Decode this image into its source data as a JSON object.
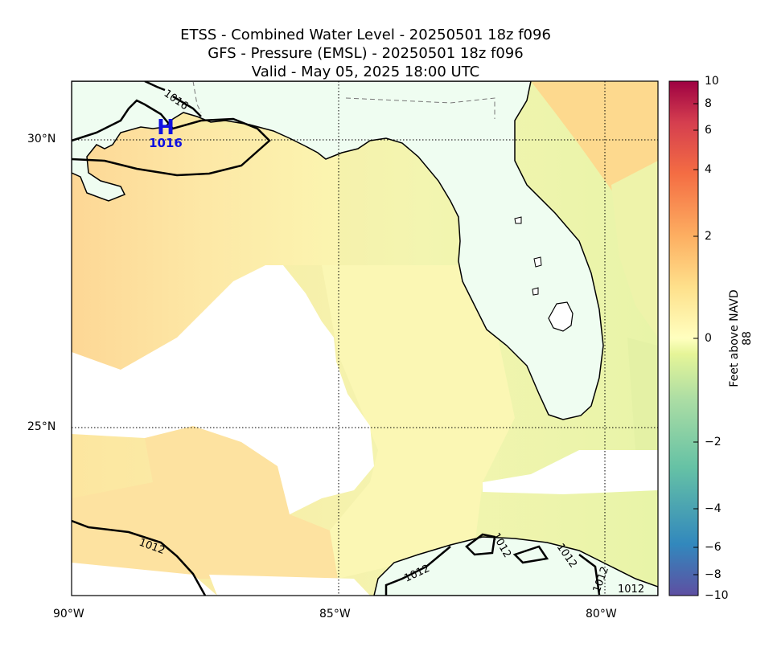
{
  "title": {
    "line1": "ETSS - Combined Water Level - 20250501 18z f096",
    "line2": "GFS - Pressure (EMSL) - 20250501 18z f096",
    "line3": "Valid - May 05, 2025 18:00 UTC"
  },
  "map": {
    "lat_labels": [
      "30°N",
      "25°N"
    ],
    "lon_labels": [
      "90°W",
      "85°W",
      "80°W"
    ],
    "high_center": {
      "symbol": "H",
      "value": "1016"
    },
    "isobar_labels": [
      "1016",
      "1012",
      "1012",
      "1012",
      "1012",
      "1012",
      "1012"
    ],
    "colors": {
      "land": "#effdf1",
      "water_positive": "#fde6a0",
      "water_neutral": "#fbfbb8",
      "high_marker": "#1010e0"
    }
  },
  "colorbar": {
    "label": "Feet above NAVD 88",
    "ticks": [
      "10",
      "8",
      "6",
      "4",
      "2",
      "0",
      "−2",
      "−4",
      "−6",
      "−8",
      "−10"
    ],
    "colormap": "Spectral"
  }
}
